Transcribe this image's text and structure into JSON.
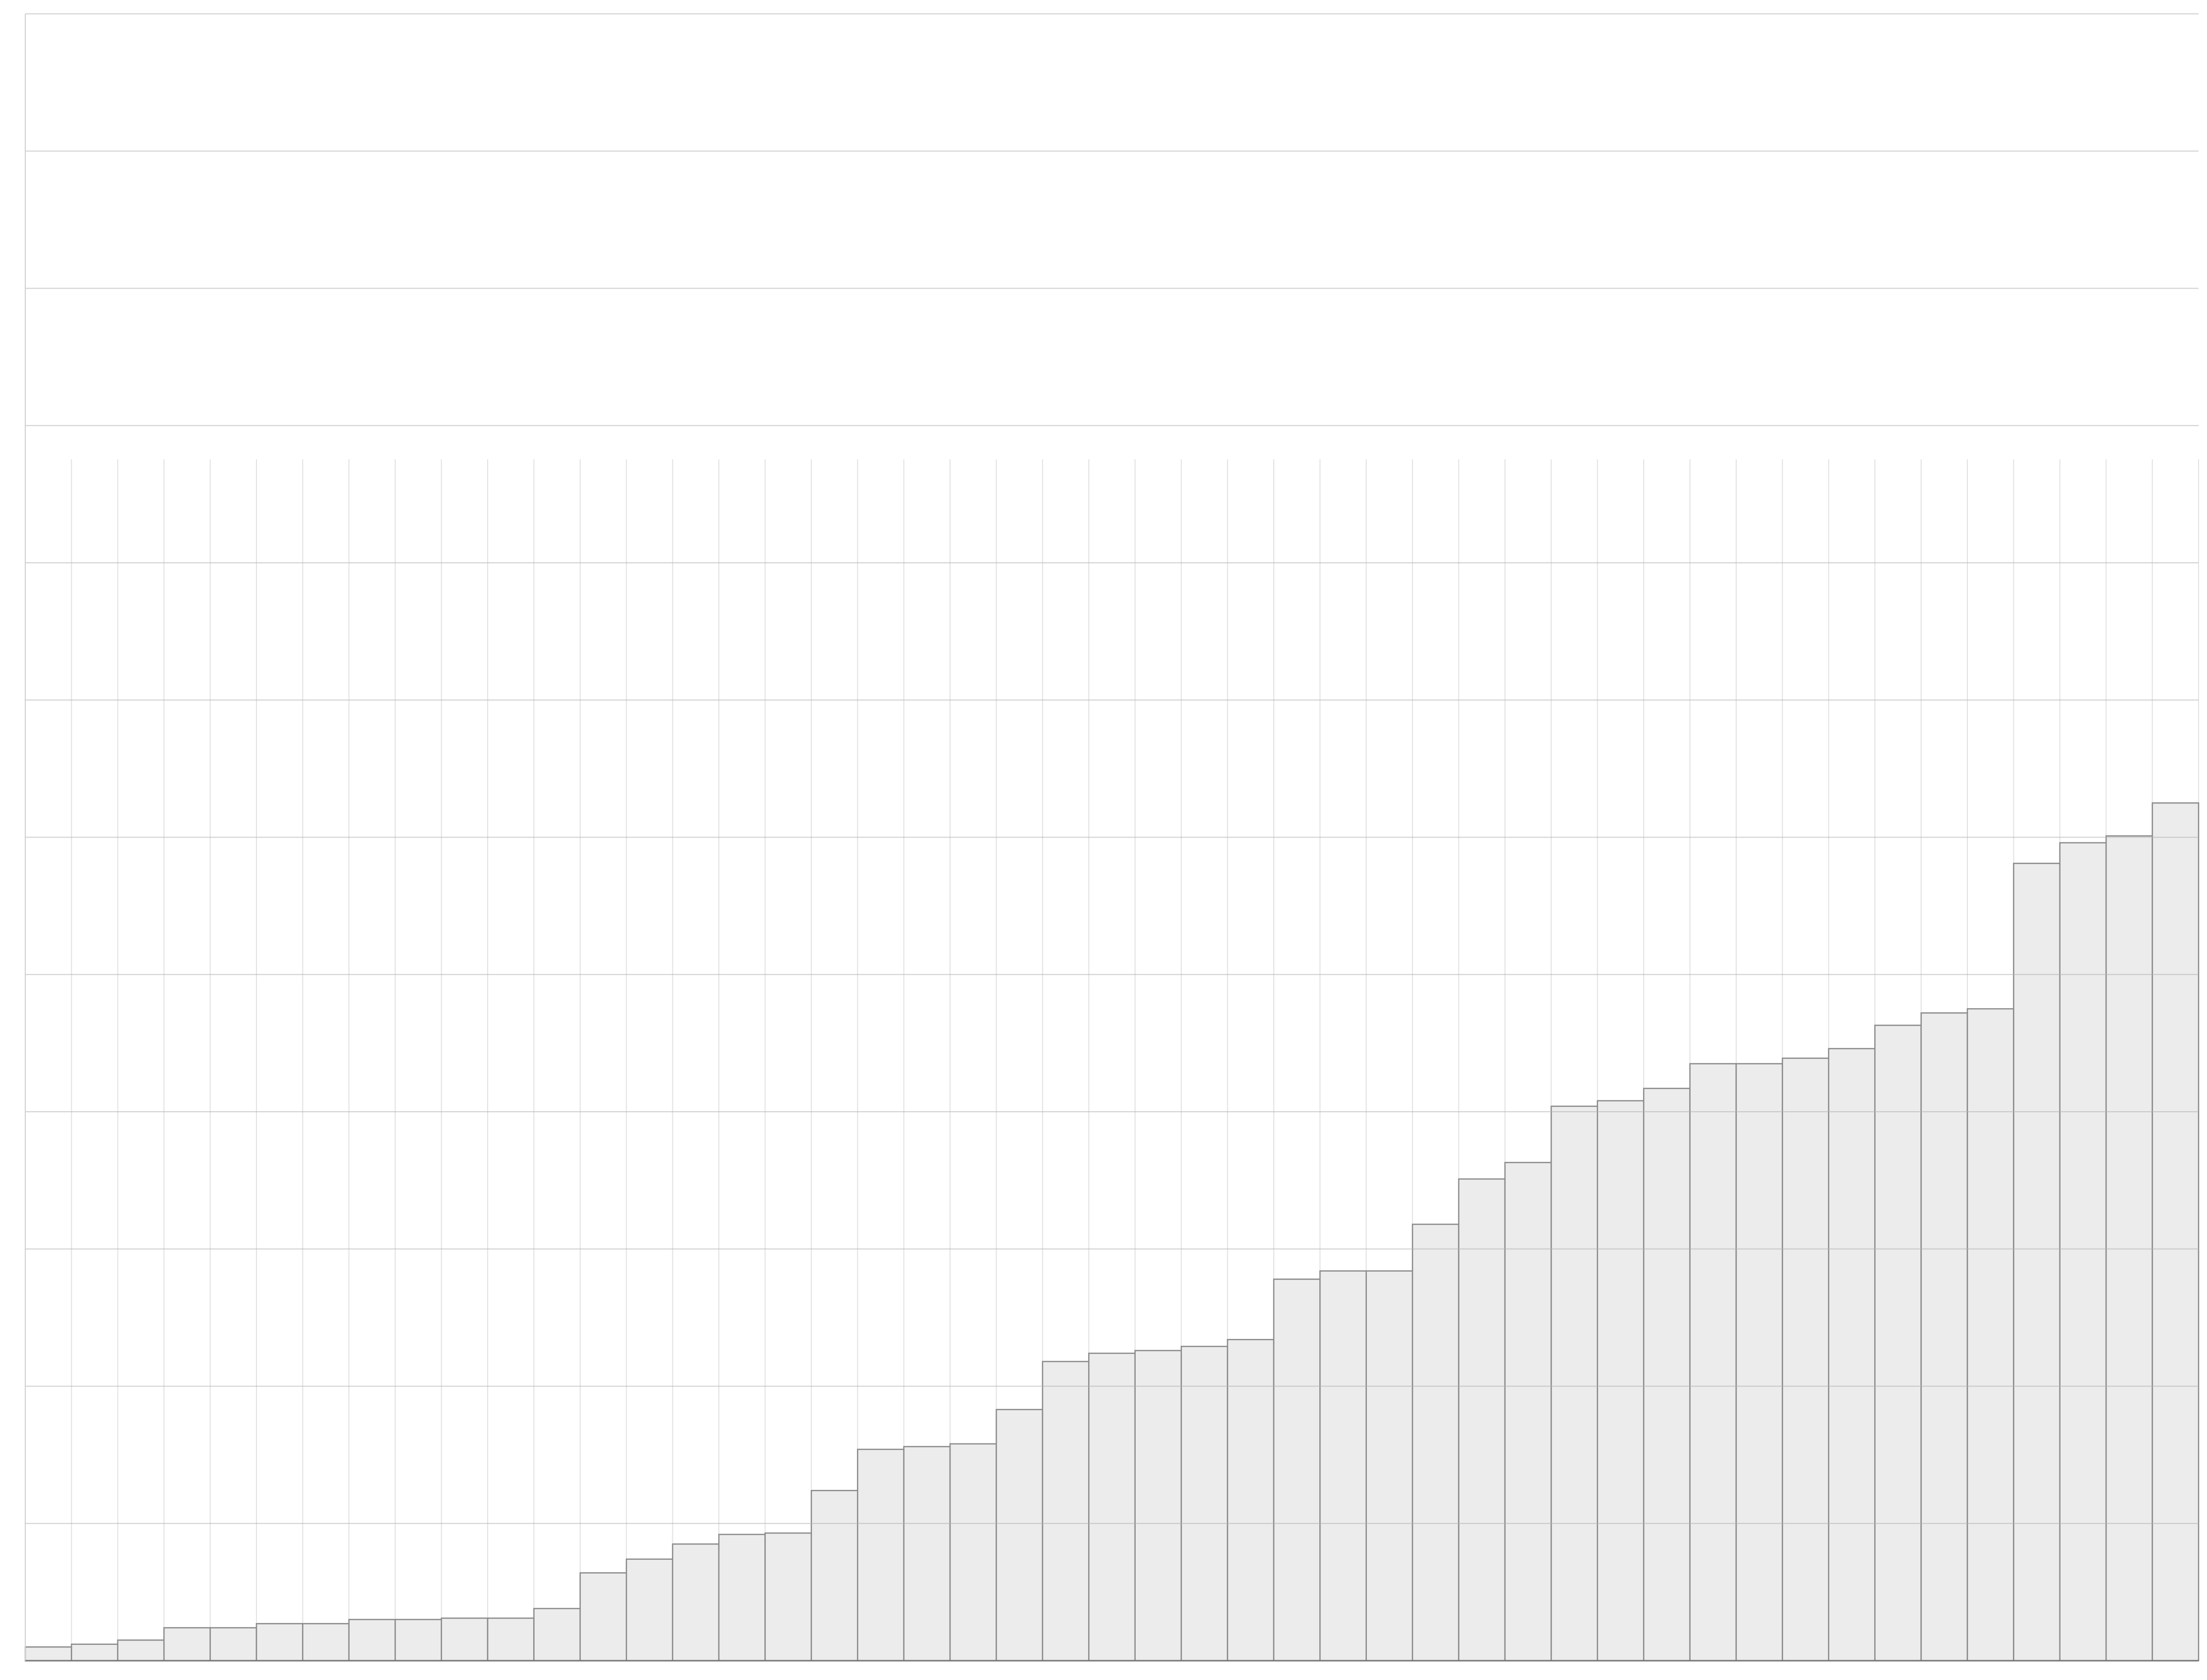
{
  "chart_data": {
    "type": "bar",
    "values": [
      0.1,
      0.12,
      0.15,
      0.24,
      0.24,
      0.27,
      0.27,
      0.3,
      0.3,
      0.31,
      0.31,
      0.38,
      0.64,
      0.74,
      0.85,
      0.92,
      0.93,
      1.24,
      1.54,
      1.56,
      1.58,
      1.83,
      2.18,
      2.24,
      2.26,
      2.29,
      2.34,
      2.78,
      2.84,
      2.84,
      3.18,
      3.51,
      3.63,
      4.04,
      4.08,
      4.17,
      4.35,
      4.35,
      4.39,
      4.46,
      4.63,
      4.72,
      4.75,
      5.81,
      5.96,
      6.01,
      6.25
    ],
    "color": "#ececec",
    "ylim": [
      0,
      12
    ],
    "yticks": [
      0,
      1,
      2,
      3,
      4,
      5,
      6,
      7,
      8,
      9,
      10,
      11,
      12
    ],
    "grid": true
  }
}
